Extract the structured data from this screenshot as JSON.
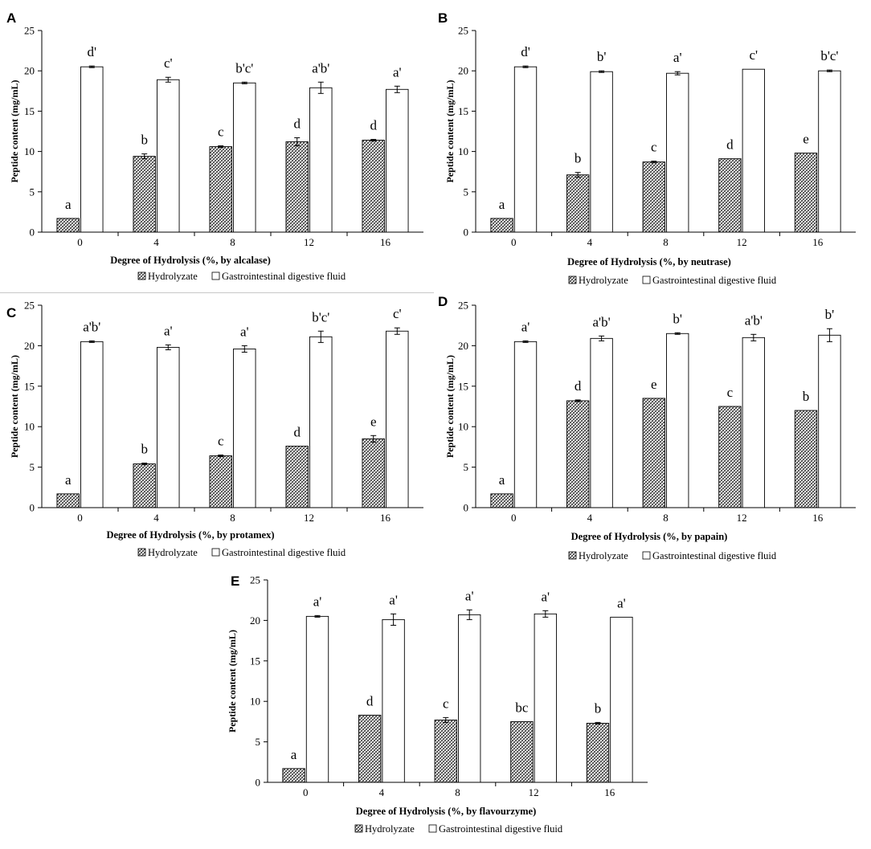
{
  "figure": {
    "panel_letters": [
      "A",
      "B",
      "C",
      "D",
      "E"
    ],
    "ylabel": "Peptide content (mg/mL)",
    "legend": [
      "Hydrolyzate",
      "Gastrointestinal digestive fluid"
    ]
  },
  "chart_data": [
    {
      "panel": "A",
      "type": "bar",
      "categories": [
        "0",
        "4",
        "8",
        "12",
        "16"
      ],
      "xlabel": "Degree of Hydrolysis (%, by alcalase)",
      "ylabel": "Peptide content (mg/mL)",
      "ylim": [
        0,
        25
      ],
      "yticks": [
        "0",
        "5",
        "10",
        "15",
        "20",
        "25"
      ],
      "series": [
        {
          "name": "Hydrolyzate",
          "values": [
            1.7,
            9.4,
            10.6,
            11.2,
            11.4
          ],
          "errors": [
            0,
            0.3,
            0.1,
            0.5,
            0.1
          ],
          "labels": [
            "a",
            "b",
            "c",
            "d",
            "d"
          ]
        },
        {
          "name": "Gastrointestinal digestive fluid",
          "values": [
            20.5,
            18.9,
            18.5,
            17.9,
            17.7
          ],
          "errors": [
            0.1,
            0.3,
            0.1,
            0.7,
            0.4
          ],
          "labels": [
            "d'",
            "c'",
            "b'c'",
            "a'b'",
            "a'"
          ]
        }
      ],
      "legend": [
        "Hydrolyzate",
        "Gastrointestinal digestive fluid"
      ]
    },
    {
      "panel": "B",
      "type": "bar",
      "categories": [
        "0",
        "4",
        "8",
        "12",
        "16"
      ],
      "xlabel": "Degree of Hydrolysis (%, by neutrase)",
      "ylabel": "Peptide content (mg/mL)",
      "ylim": [
        0,
        25
      ],
      "yticks": [
        "0",
        "5",
        "10",
        "15",
        "20",
        "25"
      ],
      "series": [
        {
          "name": "Hydrolyzate",
          "values": [
            1.7,
            7.1,
            8.7,
            9.1,
            9.8
          ],
          "errors": [
            0,
            0.3,
            0.1,
            0,
            0
          ],
          "labels": [
            "a",
            "b",
            "c",
            "d",
            "e"
          ]
        },
        {
          "name": "Gastrointestinal digestive fluid",
          "values": [
            20.5,
            19.9,
            19.7,
            20.2,
            20.0
          ],
          "errors": [
            0.1,
            0.1,
            0.2,
            0,
            0.1
          ],
          "labels": [
            "d'",
            "b'",
            "a'",
            "c'",
            "b'c'"
          ]
        }
      ],
      "legend": [
        "Hydrolyzate",
        "Gastrointestinal digestive fluid"
      ]
    },
    {
      "panel": "C",
      "type": "bar",
      "categories": [
        "0",
        "4",
        "8",
        "12",
        "16"
      ],
      "xlabel": "Degree of Hydrolysis (%, by protamex)",
      "ylabel": "Peptide content (mg/mL)",
      "ylim": [
        0,
        25
      ],
      "yticks": [
        "0",
        "5",
        "10",
        "15",
        "20",
        "25"
      ],
      "series": [
        {
          "name": "Hydrolyzate",
          "values": [
            1.7,
            5.4,
            6.4,
            7.6,
            8.5
          ],
          "errors": [
            0,
            0.1,
            0.1,
            0,
            0.4
          ],
          "labels": [
            "a",
            "b",
            "c",
            "d",
            "e"
          ]
        },
        {
          "name": "Gastrointestinal digestive fluid",
          "values": [
            20.5,
            19.8,
            19.6,
            21.1,
            21.8
          ],
          "errors": [
            0.1,
            0.3,
            0.4,
            0.7,
            0.4
          ],
          "labels": [
            "a'b'",
            "a'",
            "a'",
            "b'c'",
            "c'"
          ]
        }
      ],
      "legend": [
        "Hydrolyzate",
        "Gastrointestinal digestive fluid"
      ]
    },
    {
      "panel": "D",
      "type": "bar",
      "categories": [
        "0",
        "4",
        "8",
        "12",
        "16"
      ],
      "xlabel": "Degree of Hydrolysis (%, by papain)",
      "ylabel": "Peptide content (mg/mL)",
      "ylim": [
        0,
        25
      ],
      "yticks": [
        "0",
        "5",
        "10",
        "15",
        "20",
        "25"
      ],
      "series": [
        {
          "name": "Hydrolyzate",
          "values": [
            1.7,
            13.2,
            13.5,
            12.5,
            12.0
          ],
          "errors": [
            0,
            0.1,
            0,
            0,
            0
          ],
          "labels": [
            "a",
            "d",
            "e",
            "c",
            "b"
          ]
        },
        {
          "name": "Gastrointestinal digestive fluid",
          "values": [
            20.5,
            20.9,
            21.5,
            21.0,
            21.3
          ],
          "errors": [
            0.1,
            0.3,
            0.1,
            0.4,
            0.8
          ],
          "labels": [
            "a'",
            "a'b'",
            "b'",
            "a'b'",
            "b'"
          ]
        }
      ],
      "legend": [
        "Hydrolyzate",
        "Gastrointestinal digestive fluid"
      ]
    },
    {
      "panel": "E",
      "type": "bar",
      "categories": [
        "0",
        "4",
        "8",
        "12",
        "16"
      ],
      "xlabel": "Degree of Hydrolysis (%, by flavourzyme)",
      "ylabel": "Peptide content (mg/mL)",
      "ylim": [
        0,
        25
      ],
      "yticks": [
        "0",
        "5",
        "10",
        "15",
        "20",
        "25"
      ],
      "series": [
        {
          "name": "Hydrolyzate",
          "values": [
            1.7,
            8.3,
            7.7,
            7.5,
            7.3
          ],
          "errors": [
            0,
            0,
            0.3,
            0,
            0.1
          ],
          "labels": [
            "a",
            "d",
            "c",
            "bc",
            "b"
          ]
        },
        {
          "name": "Gastrointestinal digestive fluid",
          "values": [
            20.5,
            20.1,
            20.7,
            20.8,
            20.4
          ],
          "errors": [
            0.1,
            0.7,
            0.6,
            0.4,
            0
          ],
          "labels": [
            "a'",
            "a'",
            "a'",
            "a'",
            "a'"
          ]
        }
      ],
      "legend": [
        "Hydrolyzate",
        "Gastrointestinal digestive fluid"
      ]
    }
  ]
}
